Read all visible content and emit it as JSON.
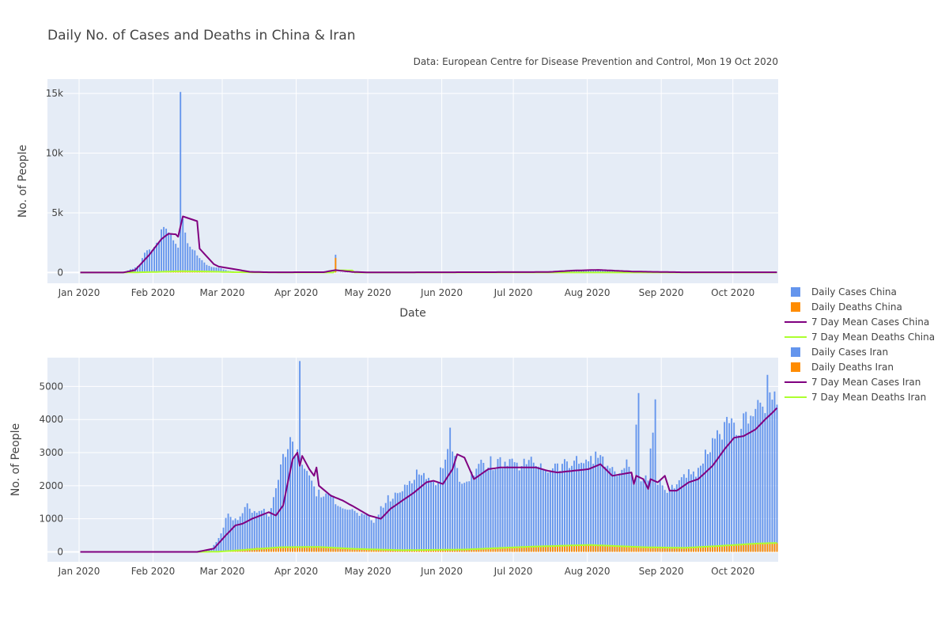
{
  "title": "Daily No. of Cases and Deaths in China & Iran",
  "subtitle": "Data: European Centre for Disease Prevention and Control, Mon 19 Oct 2020",
  "colors": {
    "cases": "#6495ED",
    "deaths": "#FF8C00",
    "mean_cases": "#800080",
    "mean_deaths": "#ADFF2F",
    "plot_bg": "#E5ECF6"
  },
  "legend": [
    {
      "label": "Daily Cases China",
      "kind": "bar",
      "color": "#6495ED"
    },
    {
      "label": "Daily Deaths China",
      "kind": "bar",
      "color": "#FF8C00"
    },
    {
      "label": "7 Day Mean Cases China",
      "kind": "line",
      "color": "#800080"
    },
    {
      "label": "7 Day Mean Deaths China",
      "kind": "line",
      "color": "#ADFF2F"
    },
    {
      "label": "Daily Cases Iran",
      "kind": "bar",
      "color": "#6495ED"
    },
    {
      "label": "Daily Deaths Iran",
      "kind": "bar",
      "color": "#FF8C00"
    },
    {
      "label": "7 Day Mean Cases Iran",
      "kind": "line",
      "color": "#800080"
    },
    {
      "label": "7 Day Mean Deaths Iran",
      "kind": "line",
      "color": "#ADFF2F"
    }
  ],
  "chart_data": [
    {
      "type": "bar",
      "country": "China",
      "xlabel": "Date",
      "ylabel": "No. of People",
      "xlim": [
        "2020-01-01",
        "2020-10-19"
      ],
      "ylim": [
        -900,
        16200
      ],
      "x_ticks": [
        {
          "date": "2020-01-01",
          "label": "Jan 2020"
        },
        {
          "date": "2020-02-01",
          "label": "Feb 2020"
        },
        {
          "date": "2020-03-01",
          "label": "Mar 2020"
        },
        {
          "date": "2020-04-01",
          "label": "Apr 2020"
        },
        {
          "date": "2020-05-01",
          "label": "May 2020"
        },
        {
          "date": "2020-06-01",
          "label": "Jun 2020"
        },
        {
          "date": "2020-07-01",
          "label": "Jul 2020"
        },
        {
          "date": "2020-08-01",
          "label": "Aug 2020"
        },
        {
          "date": "2020-09-01",
          "label": "Sep 2020"
        },
        {
          "date": "2020-10-01",
          "label": "Oct 2020"
        }
      ],
      "y_ticks": [
        {
          "value": 0,
          "label": "0"
        },
        {
          "value": 5000,
          "label": "5k"
        },
        {
          "value": 10000,
          "label": "10k"
        },
        {
          "value": 15000,
          "label": "15k"
        }
      ],
      "start_date": "2020-01-01",
      "cases_keypoints": [
        [
          "2020-01-01",
          0
        ],
        [
          "2020-01-18",
          0
        ],
        [
          "2020-01-20",
          100
        ],
        [
          "2020-01-24",
          400
        ],
        [
          "2020-01-26",
          700
        ],
        [
          "2020-01-28",
          1700
        ],
        [
          "2020-01-31",
          2000
        ],
        [
          "2020-02-03",
          2800
        ],
        [
          "2020-02-05",
          3900
        ],
        [
          "2020-02-07",
          3300
        ],
        [
          "2020-02-09",
          2800
        ],
        [
          "2020-02-11",
          2100
        ],
        [
          "2020-02-12",
          15400
        ],
        [
          "2020-02-13",
          4300
        ],
        [
          "2020-02-15",
          2500
        ],
        [
          "2020-02-18",
          1800
        ],
        [
          "2020-02-21",
          1000
        ],
        [
          "2020-02-23",
          600
        ],
        [
          "2020-02-25",
          450
        ],
        [
          "2020-02-28",
          400
        ],
        [
          "2020-03-03",
          150
        ],
        [
          "2020-03-08",
          50
        ],
        [
          "2020-03-15",
          20
        ],
        [
          "2020-04-15",
          30
        ],
        [
          "2020-04-16",
          30
        ],
        [
          "2020-04-17",
          1600
        ],
        [
          "2020-04-18",
          30
        ],
        [
          "2020-05-01",
          5
        ],
        [
          "2020-07-15",
          40
        ],
        [
          "2020-07-25",
          200
        ],
        [
          "2020-08-05",
          230
        ],
        [
          "2020-08-20",
          80
        ],
        [
          "2020-09-10",
          20
        ],
        [
          "2020-10-19",
          20
        ]
      ],
      "deaths_keypoints": [
        [
          "2020-01-01",
          0
        ],
        [
          "2020-01-22",
          5
        ],
        [
          "2020-02-01",
          50
        ],
        [
          "2020-02-10",
          100
        ],
        [
          "2020-02-20",
          110
        ],
        [
          "2020-03-05",
          30
        ],
        [
          "2020-03-20",
          5
        ],
        [
          "2020-04-16",
          3
        ],
        [
          "2020-04-17",
          1290
        ],
        [
          "2020-04-18",
          2
        ],
        [
          "2020-10-19",
          0
        ]
      ],
      "mean_cases_keypoints": [
        [
          "2020-01-01",
          0
        ],
        [
          "2020-01-19",
          0
        ],
        [
          "2020-01-24",
          200
        ],
        [
          "2020-01-30",
          1500
        ],
        [
          "2020-02-04",
          2800
        ],
        [
          "2020-02-07",
          3250
        ],
        [
          "2020-02-10",
          3200
        ],
        [
          "2020-02-11",
          3000
        ],
        [
          "2020-02-13",
          4700
        ],
        [
          "2020-02-19",
          4300
        ],
        [
          "2020-02-20",
          2000
        ],
        [
          "2020-02-26",
          700
        ],
        [
          "2020-02-28",
          500
        ],
        [
          "2020-03-05",
          300
        ],
        [
          "2020-03-12",
          60
        ],
        [
          "2020-03-20",
          20
        ],
        [
          "2020-04-12",
          30
        ],
        [
          "2020-04-17",
          200
        ],
        [
          "2020-04-24",
          50
        ],
        [
          "2020-05-01",
          10
        ],
        [
          "2020-07-15",
          40
        ],
        [
          "2020-07-25",
          160
        ],
        [
          "2020-08-05",
          220
        ],
        [
          "2020-08-20",
          80
        ],
        [
          "2020-09-10",
          20
        ],
        [
          "2020-10-19",
          20
        ]
      ],
      "mean_deaths_keypoints": [
        [
          "2020-01-01",
          0
        ],
        [
          "2020-01-22",
          5
        ],
        [
          "2020-02-02",
          50
        ],
        [
          "2020-02-12",
          110
        ],
        [
          "2020-02-22",
          90
        ],
        [
          "2020-03-05",
          30
        ],
        [
          "2020-03-20",
          5
        ],
        [
          "2020-04-16",
          3
        ],
        [
          "2020-04-17",
          190
        ],
        [
          "2020-04-24",
          180
        ],
        [
          "2020-04-25",
          0
        ],
        [
          "2020-10-19",
          0
        ]
      ]
    },
    {
      "type": "bar",
      "country": "Iran",
      "xlabel": "",
      "ylabel": "No. of People",
      "xlim": [
        "2020-01-01",
        "2020-10-19"
      ],
      "ylim": [
        -300,
        5870
      ],
      "x_ticks": [
        {
          "date": "2020-01-01",
          "label": "Jan 2020"
        },
        {
          "date": "2020-02-01",
          "label": "Feb 2020"
        },
        {
          "date": "2020-03-01",
          "label": "Mar 2020"
        },
        {
          "date": "2020-04-01",
          "label": "Apr 2020"
        },
        {
          "date": "2020-05-01",
          "label": "May 2020"
        },
        {
          "date": "2020-06-01",
          "label": "Jun 2020"
        },
        {
          "date": "2020-07-01",
          "label": "Jul 2020"
        },
        {
          "date": "2020-08-01",
          "label": "Aug 2020"
        },
        {
          "date": "2020-09-01",
          "label": "Sep 2020"
        },
        {
          "date": "2020-10-01",
          "label": "Oct 2020"
        }
      ],
      "y_ticks": [
        {
          "value": 0,
          "label": "0"
        },
        {
          "value": 1000,
          "label": "1000"
        },
        {
          "value": 2000,
          "label": "2000"
        },
        {
          "value": 3000,
          "label": "3000"
        },
        {
          "value": 4000,
          "label": "4000"
        },
        {
          "value": 5000,
          "label": "5000"
        }
      ],
      "start_date": "2020-01-01",
      "cases_keypoints": [
        [
          "2020-01-01",
          0
        ],
        [
          "2020-02-19",
          0
        ],
        [
          "2020-02-22",
          20
        ],
        [
          "2020-02-25",
          100
        ],
        [
          "2020-02-27",
          300
        ],
        [
          "2020-03-01",
          700
        ],
        [
          "2020-03-03",
          1200
        ],
        [
          "2020-03-05",
          900
        ],
        [
          "2020-03-08",
          1100
        ],
        [
          "2020-03-11",
          1400
        ],
        [
          "2020-03-14",
          1200
        ],
        [
          "2020-03-18",
          1300
        ],
        [
          "2020-03-20",
          1100
        ],
        [
          "2020-03-23",
          1800
        ],
        [
          "2020-03-26",
          2900
        ],
        [
          "2020-03-29",
          3300
        ],
        [
          "2020-03-31",
          3100
        ],
        [
          "2020-04-01",
          2900
        ],
        [
          "2020-04-02",
          5550
        ],
        [
          "2020-04-03",
          2700
        ],
        [
          "2020-04-06",
          2300
        ],
        [
          "2020-04-09",
          1800
        ],
        [
          "2020-04-12",
          1700
        ],
        [
          "2020-04-16",
          1600
        ],
        [
          "2020-04-20",
          1400
        ],
        [
          "2020-04-25",
          1200
        ],
        [
          "2020-04-30",
          1050
        ],
        [
          "2020-05-03",
          900
        ],
        [
          "2020-05-06",
          1300
        ],
        [
          "2020-05-09",
          1600
        ],
        [
          "2020-05-13",
          1700
        ],
        [
          "2020-05-17",
          2100
        ],
        [
          "2020-05-21",
          2400
        ],
        [
          "2020-05-25",
          2300
        ],
        [
          "2020-05-28",
          2000
        ],
        [
          "2020-06-01",
          2600
        ],
        [
          "2020-06-03",
          3200
        ],
        [
          "2020-06-04",
          3650
        ],
        [
          "2020-06-05",
          2900
        ],
        [
          "2020-06-08",
          2300
        ],
        [
          "2020-06-10",
          2100
        ],
        [
          "2020-06-15",
          2500
        ],
        [
          "2020-06-20",
          2700
        ],
        [
          "2020-07-01",
          2600
        ],
        [
          "2020-07-10",
          2700
        ],
        [
          "2020-07-15",
          2500
        ],
        [
          "2020-07-20",
          2600
        ],
        [
          "2020-07-28",
          2700
        ],
        [
          "2020-08-01",
          2800
        ],
        [
          "2020-08-07",
          2900
        ],
        [
          "2020-08-12",
          2300
        ],
        [
          "2020-08-17",
          2600
        ],
        [
          "2020-08-20",
          2300
        ],
        [
          "2020-08-22",
          5000
        ],
        [
          "2020-08-23",
          2300
        ],
        [
          "2020-08-26",
          2200
        ],
        [
          "2020-08-29",
          4650
        ],
        [
          "2020-08-30",
          2100
        ],
        [
          "2020-09-03",
          1800
        ],
        [
          "2020-09-07",
          2100
        ],
        [
          "2020-09-11",
          2400
        ],
        [
          "2020-09-15",
          2200
        ],
        [
          "2020-09-19",
          2900
        ],
        [
          "2020-09-23",
          3300
        ],
        [
          "2020-09-27",
          3800
        ],
        [
          "2020-10-03",
          3700
        ],
        [
          "2020-10-08",
          4300
        ],
        [
          "2020-10-11",
          4500
        ],
        [
          "2020-10-14",
          4200
        ],
        [
          "2020-10-15",
          5100
        ],
        [
          "2020-10-17",
          4800
        ],
        [
          "2020-10-19",
          4200
        ]
      ],
      "deaths_keypoints": [
        [
          "2020-01-01",
          0
        ],
        [
          "2020-02-19",
          0
        ],
        [
          "2020-02-25",
          5
        ],
        [
          "2020-03-05",
          50
        ],
        [
          "2020-03-15",
          120
        ],
        [
          "2020-03-25",
          140
        ],
        [
          "2020-04-05",
          150
        ],
        [
          "2020-04-15",
          110
        ],
        [
          "2020-04-25",
          80
        ],
        [
          "2020-05-05",
          60
        ],
        [
          "2020-05-20",
          50
        ],
        [
          "2020-06-05",
          60
        ],
        [
          "2020-06-20",
          100
        ],
        [
          "2020-07-05",
          160
        ],
        [
          "2020-07-20",
          200
        ],
        [
          "2020-08-01",
          210
        ],
        [
          "2020-08-15",
          180
        ],
        [
          "2020-08-25",
          140
        ],
        [
          "2020-09-05",
          120
        ],
        [
          "2020-09-20",
          150
        ],
        [
          "2020-10-05",
          230
        ],
        [
          "2020-10-19",
          270
        ]
      ],
      "mean_cases_keypoints": [
        [
          "2020-01-01",
          0
        ],
        [
          "2020-02-19",
          0
        ],
        [
          "2020-02-26",
          100
        ],
        [
          "2020-03-02",
          500
        ],
        [
          "2020-03-06",
          800
        ],
        [
          "2020-03-09",
          850
        ],
        [
          "2020-03-13",
          1000
        ],
        [
          "2020-03-20",
          1200
        ],
        [
          "2020-03-23",
          1100
        ],
        [
          "2020-03-26",
          1400
        ],
        [
          "2020-03-30",
          2800
        ],
        [
          "2020-04-01",
          3000
        ],
        [
          "2020-04-02",
          2600
        ],
        [
          "2020-04-03",
          2900
        ],
        [
          "2020-04-06",
          2500
        ],
        [
          "2020-04-08",
          2300
        ],
        [
          "2020-04-09",
          2550
        ],
        [
          "2020-04-10",
          2000
        ],
        [
          "2020-04-15",
          1700
        ],
        [
          "2020-04-20",
          1550
        ],
        [
          "2020-04-25",
          1350
        ],
        [
          "2020-05-01",
          1100
        ],
        [
          "2020-05-06",
          1000
        ],
        [
          "2020-05-10",
          1300
        ],
        [
          "2020-05-15",
          1550
        ],
        [
          "2020-05-20",
          1800
        ],
        [
          "2020-05-25",
          2100
        ],
        [
          "2020-05-28",
          2150
        ],
        [
          "2020-06-01",
          2050
        ],
        [
          "2020-06-05",
          2500
        ],
        [
          "2020-06-07",
          2950
        ],
        [
          "2020-06-10",
          2850
        ],
        [
          "2020-06-14",
          2200
        ],
        [
          "2020-06-20",
          2500
        ],
        [
          "2020-06-25",
          2550
        ],
        [
          "2020-07-10",
          2550
        ],
        [
          "2020-07-15",
          2450
        ],
        [
          "2020-07-19",
          2400
        ],
        [
          "2020-08-01",
          2500
        ],
        [
          "2020-08-06",
          2650
        ],
        [
          "2020-08-11",
          2300
        ],
        [
          "2020-08-19",
          2400
        ],
        [
          "2020-08-20",
          2050
        ],
        [
          "2020-08-21",
          2300
        ],
        [
          "2020-08-24",
          2200
        ],
        [
          "2020-08-26",
          1900
        ],
        [
          "2020-08-27",
          2200
        ],
        [
          "2020-08-30",
          2100
        ],
        [
          "2020-09-02",
          2300
        ],
        [
          "2020-09-04",
          1850
        ],
        [
          "2020-09-07",
          1850
        ],
        [
          "2020-09-12",
          2100
        ],
        [
          "2020-09-16",
          2200
        ],
        [
          "2020-09-22",
          2600
        ],
        [
          "2020-09-27",
          3100
        ],
        [
          "2020-10-01",
          3450
        ],
        [
          "2020-10-05",
          3500
        ],
        [
          "2020-10-10",
          3700
        ],
        [
          "2020-10-14",
          4000
        ],
        [
          "2020-10-17",
          4200
        ],
        [
          "2020-10-19",
          4350
        ]
      ],
      "mean_deaths_keypoints": [
        [
          "2020-01-01",
          0
        ],
        [
          "2020-02-20",
          0
        ],
        [
          "2020-02-28",
          5
        ],
        [
          "2020-03-10",
          60
        ],
        [
          "2020-03-25",
          140
        ],
        [
          "2020-04-10",
          150
        ],
        [
          "2020-04-25",
          90
        ],
        [
          "2020-05-15",
          50
        ],
        [
          "2020-06-10",
          70
        ],
        [
          "2020-07-05",
          150
        ],
        [
          "2020-08-01",
          210
        ],
        [
          "2020-08-25",
          140
        ],
        [
          "2020-09-10",
          120
        ],
        [
          "2020-09-25",
          180
        ],
        [
          "2020-10-10",
          250
        ],
        [
          "2020-10-19",
          270
        ]
      ]
    }
  ]
}
